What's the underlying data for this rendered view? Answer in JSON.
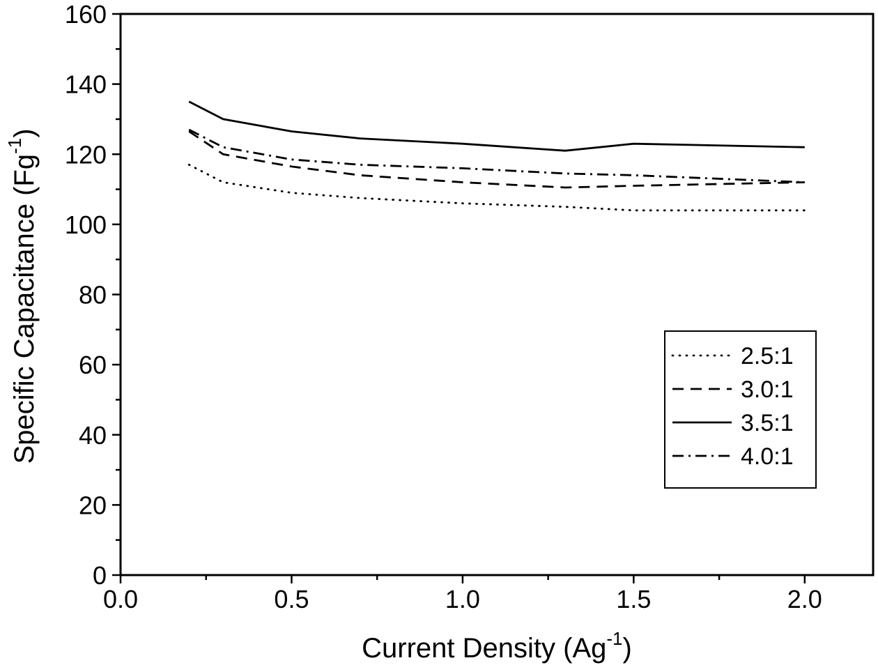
{
  "chart_data": {
    "type": "line",
    "title": "",
    "xlabel": "Current Density (Ag",
    "xlabel_sup": "-1",
    "xlabel_end": ")",
    "ylabel": "Specific Capacitance (Fg",
    "ylabel_sup": "-1",
    "ylabel_end": ")",
    "xlim": [
      0.0,
      2.2
    ],
    "ylim": [
      0,
      160
    ],
    "xticks": [
      "0.0",
      "0.5",
      "1.0",
      "1.5",
      "2.0"
    ],
    "yticks": [
      "0",
      "20",
      "40",
      "60",
      "80",
      "100",
      "120",
      "140",
      "160"
    ],
    "grid": false,
    "legend_position": "bottom-right",
    "x": [
      0.2,
      0.3,
      0.5,
      0.7,
      1.0,
      1.3,
      1.5,
      2.0
    ],
    "series": [
      {
        "name": "2.5:1",
        "style": "dotted",
        "values": [
          117,
          112,
          109,
          107.5,
          106,
          105,
          104,
          104
        ]
      },
      {
        "name": "3.0:1",
        "style": "dashed",
        "values": [
          126.5,
          120,
          116.5,
          114,
          112,
          110.5,
          111,
          112
        ]
      },
      {
        "name": "3.5:1",
        "style": "solid",
        "values": [
          135,
          130,
          126.5,
          124.5,
          123,
          121,
          123,
          122
        ]
      },
      {
        "name": "4.0:1",
        "style": "dashdot",
        "values": [
          127,
          122,
          118.5,
          117,
          116,
          114.5,
          114,
          112
        ]
      }
    ]
  },
  "colors": {
    "line": "#000000",
    "background": "#ffffff"
  }
}
